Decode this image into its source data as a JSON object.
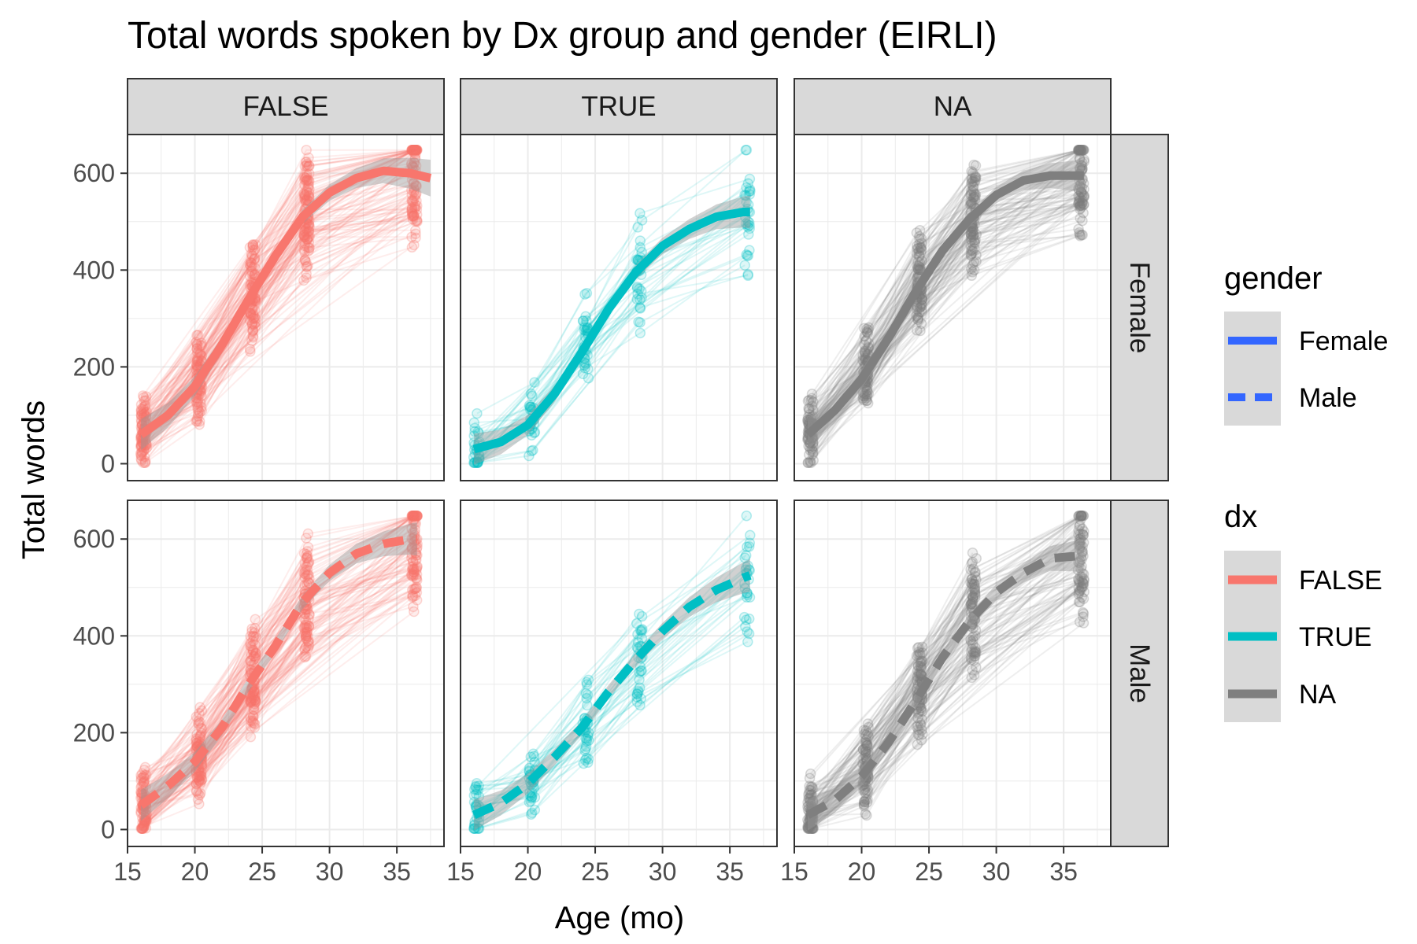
{
  "chart_data": {
    "type": "line",
    "title": "Total words spoken by Dx group and gender (EIRLI)",
    "xlabel": "Age (mo)",
    "ylabel": "Total words",
    "xlim": [
      15,
      38.5
    ],
    "ylim": [
      -35,
      680
    ],
    "x_ticks": [
      15,
      20,
      25,
      30,
      35
    ],
    "y_ticks": [
      0,
      200,
      400,
      600
    ],
    "grid": true,
    "facet_cols": [
      "FALSE",
      "TRUE",
      "NA"
    ],
    "facet_rows": [
      "Female",
      "Male"
    ],
    "dx_colors": {
      "FALSE": "#F8766D",
      "TRUE": "#00BFC4",
      "NA": "#7F7F7F"
    },
    "trend_fits": {
      "FALSE": {
        "Female": {
          "x": [
            16,
            18,
            20,
            22,
            24,
            26,
            28,
            30,
            32,
            34,
            36,
            37.5
          ],
          "y": [
            60,
            100,
            160,
            245,
            340,
            430,
            510,
            560,
            590,
            605,
            600,
            590
          ]
        },
        "Male": {
          "x": [
            16,
            18,
            20,
            22,
            24,
            26,
            28,
            30,
            32,
            34,
            36,
            36.5
          ],
          "y": [
            50,
            90,
            140,
            210,
            300,
            380,
            470,
            530,
            570,
            590,
            600,
            600
          ]
        }
      },
      "TRUE": {
        "Female": {
          "x": [
            16,
            18,
            20,
            22,
            24,
            26,
            28,
            30,
            32,
            34,
            36,
            36.5
          ],
          "y": [
            30,
            45,
            80,
            145,
            230,
            320,
            395,
            450,
            485,
            510,
            520,
            520
          ]
        },
        "Male": {
          "x": [
            16,
            18,
            20,
            22,
            24,
            26,
            28,
            30,
            32,
            34,
            36,
            36.5
          ],
          "y": [
            30,
            55,
            95,
            150,
            210,
            285,
            350,
            410,
            460,
            495,
            520,
            525
          ]
        }
      },
      "NA": {
        "Female": {
          "x": [
            16,
            18,
            20,
            22,
            24,
            26,
            28,
            30,
            32,
            34,
            36,
            36.5
          ],
          "y": [
            60,
            110,
            175,
            260,
            355,
            440,
            505,
            555,
            585,
            595,
            595,
            595
          ]
        },
        "Male": {
          "x": [
            16,
            18,
            20,
            22,
            24,
            26,
            28,
            30,
            32,
            34,
            36,
            36.5
          ],
          "y": [
            30,
            60,
            110,
            180,
            265,
            355,
            430,
            490,
            530,
            560,
            565,
            565
          ]
        }
      }
    },
    "legend": {
      "gender": {
        "title": "gender",
        "items": [
          {
            "label": "Female",
            "linetype": "solid"
          },
          {
            "label": "Male",
            "linetype": "dashed"
          }
        ]
      },
      "dx": {
        "title": "dx",
        "items": [
          {
            "label": "FALSE"
          },
          {
            "label": "TRUE"
          },
          {
            "label": "NA"
          }
        ]
      }
    }
  }
}
